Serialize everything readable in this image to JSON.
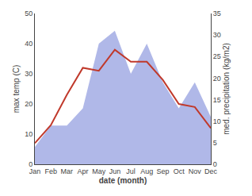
{
  "chart_data": {
    "type": "line",
    "xlabel": "date (month)",
    "ylabel": "max temp (C)",
    "y2label": "med. precipitation (kg/m2)",
    "categories": [
      "Jan",
      "Feb",
      "Mar",
      "Apr",
      "May",
      "Jun",
      "Jul",
      "Aug",
      "Sep",
      "Oct",
      "Nov",
      "Dec"
    ],
    "series": [
      {
        "type": "area",
        "axis": "y2",
        "color": "#b0b8e8",
        "values": [
          4,
          9,
          9,
          13,
          28,
          31,
          21,
          28,
          19,
          13,
          19,
          11
        ]
      },
      {
        "type": "line",
        "color": "#c0392b",
        "values": [
          7,
          13,
          23,
          32,
          31,
          38,
          34,
          34,
          28,
          20,
          19,
          12
        ]
      }
    ],
    "ylim": [
      0,
      50
    ],
    "yticks": [
      0,
      10,
      20,
      30,
      40,
      50
    ],
    "y2lim": [
      0,
      35
    ],
    "y2ticks": [
      0,
      5,
      10,
      15,
      20,
      25,
      30,
      35
    ],
    "grid": false
  }
}
